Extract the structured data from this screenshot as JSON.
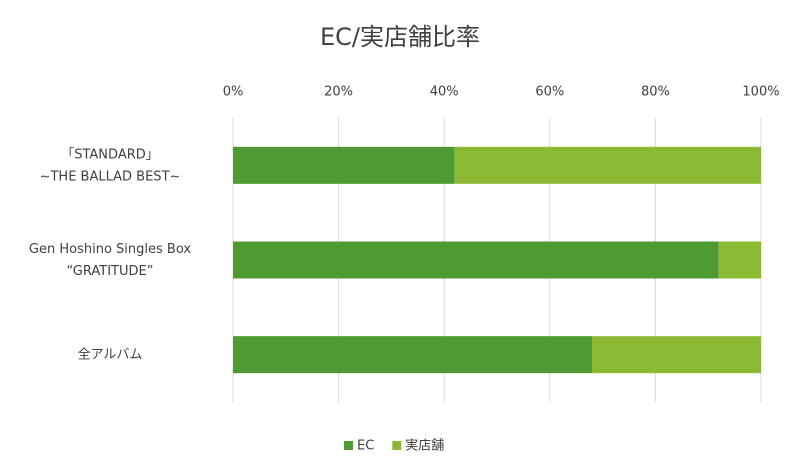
{
  "chart_data": {
    "type": "stacked_barh",
    "title": "EC/実店舗比率",
    "categories": [
      "「STANDARD」\n~THE BALLAD BEST~",
      "Gen Hoshino Singles Box\n“GRATITUDE”",
      "全アルバム"
    ],
    "series": [
      {
        "name": "EC",
        "color": "#4e9a33",
        "values": [
          42,
          92,
          68
        ]
      },
      {
        "name": "実店舗",
        "color": "#8cba35",
        "values": [
          58,
          8,
          32
        ]
      }
    ],
    "xlim": [
      0,
      100
    ],
    "xticks": [
      {
        "value": 0,
        "label": "0%"
      },
      {
        "value": 20,
        "label": "20%"
      },
      {
        "value": 40,
        "label": "40%"
      },
      {
        "value": 60,
        "label": "60%"
      },
      {
        "value": 80,
        "label": "80%"
      },
      {
        "value": 100,
        "label": "100%"
      }
    ],
    "grid": true,
    "legend": "bottom"
  }
}
